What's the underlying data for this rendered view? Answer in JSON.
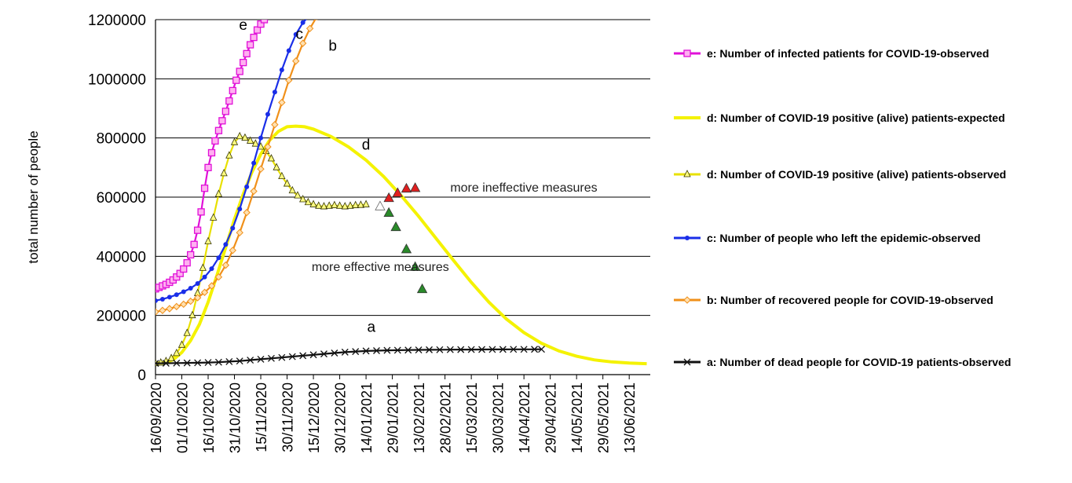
{
  "chart_data": {
    "type": "line",
    "ylabel": "total number of people",
    "xlabel": "",
    "ylim": [
      0,
      1200000
    ],
    "y_ticks": [
      "0",
      "200000",
      "400000",
      "600000",
      "800000",
      "1000000",
      "1200000"
    ],
    "x_ticks": [
      "16/09/2020",
      "01/10/2020",
      "16/10/2020",
      "31/10/2020",
      "15/11/2020",
      "30/11/2020",
      "15/12/2020",
      "30/12/2020",
      "14/01/2021",
      "29/01/2021",
      "13/02/2021",
      "28/02/2021",
      "15/03/2021",
      "30/03/2021",
      "14/04/2021",
      "29/04/2021",
      "14/05/2021",
      "29/05/2021",
      "13/06/2021"
    ],
    "x_unit": "days since 16/09/2020 (tick every 15 days)",
    "grid": true,
    "legend_position": "right",
    "curve_labels": [
      {
        "text": "e",
        "x": 50,
        "y": 1165000
      },
      {
        "text": "c",
        "x": 82,
        "y": 1135000
      },
      {
        "text": "b",
        "x": 101,
        "y": 1095000
      },
      {
        "text": "d",
        "x": 120,
        "y": 760000
      },
      {
        "text": "a",
        "x": 123,
        "y": 145000
      }
    ],
    "annotations": [
      {
        "text": "more ineffective measures",
        "x": 168,
        "y": 618000
      },
      {
        "text": "more effective measures",
        "x": 89,
        "y": 350000
      }
    ],
    "series": [
      {
        "name": "e: Number of infected patients for COVID-19-observed",
        "color": "#e010d8",
        "marker": "square",
        "x": [
          0,
          2,
          4,
          6,
          8,
          10,
          12,
          14,
          16,
          18,
          20,
          22,
          24,
          26,
          28,
          30,
          32,
          34,
          36,
          38,
          40,
          42,
          44,
          46,
          48,
          50,
          52,
          54,
          56,
          58,
          60,
          62,
          64
        ],
        "y": [
          290000,
          295000,
          300000,
          305000,
          312000,
          320000,
          330000,
          342000,
          357000,
          378000,
          405000,
          440000,
          488000,
          550000,
          630000,
          700000,
          750000,
          790000,
          825000,
          858000,
          890000,
          925000,
          960000,
          995000,
          1025000,
          1055000,
          1085000,
          1115000,
          1140000,
          1165000,
          1185000,
          1200000,
          1215000
        ]
      },
      {
        "name": "d: Number of COVID-19 positive (alive) patients-expected",
        "color": "#f4f200",
        "marker": "none",
        "x": [
          0,
          5,
          10,
          15,
          20,
          25,
          30,
          35,
          40,
          45,
          50,
          55,
          60,
          65,
          70,
          75,
          80,
          85,
          90,
          100,
          110,
          120,
          130,
          140,
          150,
          160,
          170,
          180,
          190,
          200,
          210,
          220,
          230,
          240,
          250,
          260,
          270,
          280
        ],
        "y": [
          38000,
          41000,
          50000,
          75000,
          115000,
          170000,
          245000,
          335000,
          430000,
          525000,
          610000,
          685000,
          745000,
          792000,
          822000,
          838000,
          840000,
          838000,
          830000,
          805000,
          770000,
          725000,
          670000,
          605000,
          535000,
          460000,
          385000,
          312000,
          245000,
          188000,
          142000,
          106000,
          80000,
          62000,
          50000,
          43000,
          39000,
          37000
        ]
      },
      {
        "name": "d: Number of COVID-19 positive (alive) patients-observed",
        "color": "#e8e000",
        "marker": "triangle",
        "x": [
          0,
          3,
          6,
          9,
          12,
          15,
          18,
          21,
          24,
          27,
          30,
          33,
          36,
          39,
          42,
          45,
          48,
          51,
          54,
          57,
          60,
          63,
          66,
          69,
          72,
          75,
          78,
          81,
          84,
          87,
          90,
          93,
          96,
          99,
          102,
          105,
          108,
          111,
          114,
          117,
          120
        ],
        "y": [
          38000,
          40000,
          45000,
          55000,
          72000,
          100000,
          140000,
          200000,
          275000,
          360000,
          450000,
          530000,
          610000,
          680000,
          740000,
          785000,
          805000,
          800000,
          790000,
          780000,
          770000,
          755000,
          730000,
          700000,
          670000,
          645000,
          622000,
          605000,
          592000,
          582000,
          575000,
          570000,
          568000,
          570000,
          572000,
          570000,
          568000,
          570000,
          572000,
          573000,
          575000
        ]
      },
      {
        "name": "c: Number of people who left the epidemic-observed",
        "color": "#1a2ee8",
        "marker": "dot",
        "x": [
          0,
          4,
          8,
          12,
          16,
          20,
          24,
          28,
          32,
          36,
          40,
          44,
          48,
          52,
          56,
          60,
          64,
          68,
          72,
          76,
          80,
          84,
          88,
          92
        ],
        "y": [
          250000,
          255000,
          262000,
          270000,
          280000,
          292000,
          308000,
          330000,
          358000,
          395000,
          440000,
          495000,
          560000,
          635000,
          715000,
          800000,
          880000,
          955000,
          1030000,
          1095000,
          1150000,
          1190000,
          1215000,
          1230000
        ]
      },
      {
        "name": "b: Number of recovered people for COVID-19-observed",
        "color": "#f0901a",
        "marker": "diamond",
        "x": [
          0,
          4,
          8,
          12,
          16,
          20,
          24,
          28,
          32,
          36,
          40,
          44,
          48,
          52,
          56,
          60,
          64,
          68,
          72,
          76,
          80,
          84,
          88,
          92
        ],
        "y": [
          212000,
          217000,
          223000,
          230000,
          238000,
          248000,
          260000,
          278000,
          300000,
          330000,
          370000,
          420000,
          480000,
          548000,
          620000,
          695000,
          770000,
          845000,
          920000,
          995000,
          1060000,
          1120000,
          1170000,
          1210000
        ]
      },
      {
        "name": "a: Number of dead people for COVID-19 patients-observed",
        "color": "#111111",
        "marker": "x",
        "x": [
          0,
          6,
          12,
          18,
          24,
          30,
          36,
          42,
          48,
          54,
          60,
          66,
          72,
          78,
          84,
          90,
          96,
          102,
          108,
          114,
          120,
          126,
          132,
          138,
          144,
          150,
          156,
          162,
          168,
          174,
          180,
          186,
          192,
          198,
          204,
          210,
          216,
          220
        ],
        "y": [
          38000,
          38500,
          39000,
          39500,
          40000,
          41000,
          42000,
          44000,
          46000,
          49000,
          52000,
          55000,
          58000,
          61000,
          64000,
          67000,
          70000,
          73000,
          76000,
          78000,
          80000,
          81000,
          82000,
          82500,
          83000,
          83500,
          84000,
          84200,
          84400,
          84600,
          84800,
          85000,
          85200,
          85300,
          85400,
          85500,
          85600,
          85700
        ]
      }
    ],
    "extra_points": [
      {
        "group": "ineffective",
        "color": "#e02020",
        "x": [
          133,
          138,
          143,
          148
        ],
        "y": [
          598000,
          615000,
          630000,
          632000
        ]
      },
      {
        "group": "effective",
        "color": "#2a8a2a",
        "x": [
          133,
          137,
          143,
          148,
          152
        ],
        "y": [
          548000,
          500000,
          425000,
          365000,
          290000
        ]
      },
      {
        "group": "transition",
        "color": "#ffffff",
        "x": [
          128
        ],
        "y": [
          570000
        ]
      }
    ]
  }
}
